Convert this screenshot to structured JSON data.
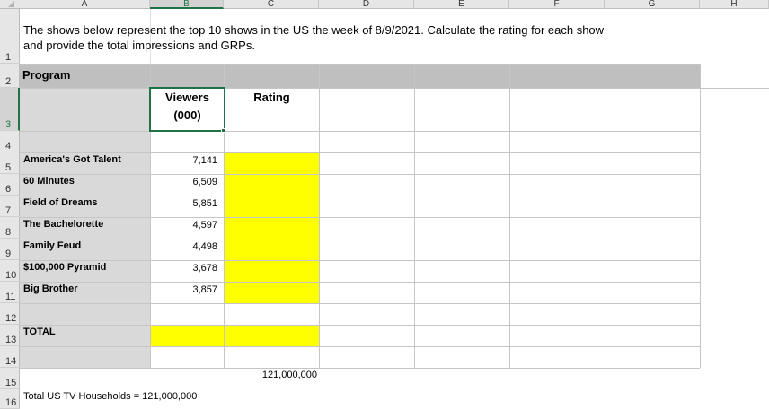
{
  "columns": [
    "A",
    "B",
    "C",
    "D",
    "E",
    "F",
    "G",
    "H"
  ],
  "rows": [
    "1",
    "2",
    "3",
    "4",
    "5",
    "6",
    "7",
    "8",
    "9",
    "10",
    "11",
    "12",
    "13",
    "14",
    "15",
    "16"
  ],
  "instructions_line1": "The shows below represent the top 10 shows in the US the week of 8/9/2021. Calculate the rating for each show",
  "instructions_line2": "and provide the total impressions and GRPs.",
  "header_program": "Program",
  "header_viewers_line1": "Viewers",
  "header_viewers_line2": "(000)",
  "header_rating": "Rating",
  "shows": [
    {
      "name": "America's Got Talent",
      "viewers": "7,141"
    },
    {
      "name": "60 Minutes",
      "viewers": "6,509"
    },
    {
      "name": "Field of Dreams",
      "viewers": "5,851"
    },
    {
      "name": "The Bachelorette",
      "viewers": "4,597"
    },
    {
      "name": "Family Feud",
      "viewers": "4,498"
    },
    {
      "name": "$100,000 Pyramid",
      "viewers": "3,678"
    },
    {
      "name": "Big Brother",
      "viewers": "3,857"
    }
  ],
  "total_label": "TOTAL",
  "households_value": "121,000,000",
  "households_label": "Total US TV Households = 121,000,000",
  "colors": {
    "highlight": "#ffff00",
    "selection": "#217346",
    "label_fill": "#d9d9d9",
    "header_band": "#bfbfbf"
  }
}
